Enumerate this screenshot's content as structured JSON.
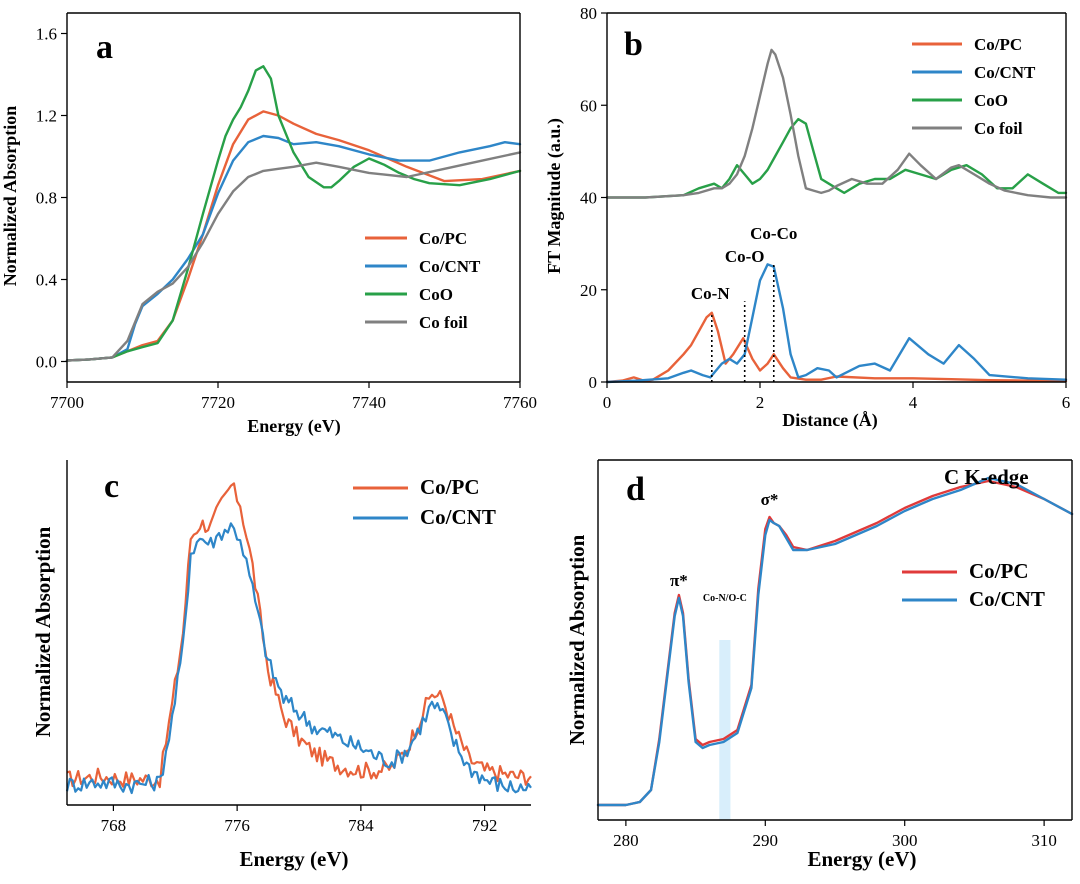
{
  "colors": {
    "Co/PC": "#E8623A",
    "Co/CNT": "#2E86C8",
    "CoO": "#28A048",
    "Co foil": "#808080",
    "Co/PC_d": "#E03A3A",
    "shade": "#D8EEFB"
  },
  "chart_data": [
    {
      "id": "a",
      "type": "line",
      "letter": "a",
      "xlabel": "Energy (eV)",
      "ylabel": "Normalized Absorption",
      "xlim": [
        7700,
        7760
      ],
      "ylim": [
        -0.1,
        1.7
      ],
      "xticks": [
        7700,
        7720,
        7740,
        7760
      ],
      "yticks": [
        0.0,
        0.4,
        0.8,
        1.2,
        1.6
      ],
      "ytick_labels": [
        "0.0",
        "0.4",
        "0.8",
        "1.2",
        "1.6"
      ],
      "legend": [
        "Co/PC",
        "Co/CNT",
        "CoO",
        "Co foil"
      ],
      "series": [
        {
          "name": "Co/PC",
          "x": [
            7700,
            7703,
            7706,
            7708,
            7710,
            7712,
            7714,
            7716,
            7718,
            7720,
            7722,
            7724,
            7726,
            7728,
            7730,
            7733,
            7736,
            7740,
            7745,
            7750,
            7755,
            7760
          ],
          "y": [
            0.005,
            0.01,
            0.02,
            0.05,
            0.08,
            0.1,
            0.2,
            0.4,
            0.62,
            0.86,
            1.06,
            1.18,
            1.22,
            1.2,
            1.16,
            1.11,
            1.08,
            1.03,
            0.95,
            0.88,
            0.89,
            0.93
          ]
        },
        {
          "name": "Co/CNT",
          "x": [
            7700,
            7703,
            7706,
            7708,
            7709,
            7710,
            7711,
            7712,
            7714,
            7716,
            7718,
            7720,
            7722,
            7724,
            7726,
            7728,
            7730,
            7733,
            7736,
            7740,
            7744,
            7748,
            7752,
            7756,
            7758,
            7760
          ],
          "y": [
            0.005,
            0.01,
            0.02,
            0.06,
            0.18,
            0.27,
            0.3,
            0.33,
            0.4,
            0.5,
            0.62,
            0.82,
            0.98,
            1.07,
            1.1,
            1.09,
            1.06,
            1.07,
            1.05,
            1.01,
            0.98,
            0.98,
            1.02,
            1.05,
            1.07,
            1.06
          ]
        },
        {
          "name": "CoO",
          "x": [
            7700,
            7703,
            7706,
            7708,
            7710,
            7712,
            7714,
            7716,
            7718,
            7720,
            7721,
            7722,
            7723,
            7724,
            7725,
            7726,
            7727,
            7728,
            7730,
            7732,
            7734,
            7735,
            7736,
            7738,
            7740,
            7742,
            7744,
            7746,
            7748,
            7752,
            7756,
            7760
          ],
          "y": [
            0.005,
            0.01,
            0.02,
            0.05,
            0.07,
            0.09,
            0.2,
            0.45,
            0.72,
            0.98,
            1.1,
            1.18,
            1.24,
            1.32,
            1.42,
            1.44,
            1.38,
            1.2,
            1.02,
            0.9,
            0.85,
            0.85,
            0.88,
            0.95,
            0.99,
            0.96,
            0.92,
            0.89,
            0.87,
            0.86,
            0.89,
            0.93
          ]
        },
        {
          "name": "Co foil",
          "x": [
            7700,
            7703,
            7706,
            7708,
            7710,
            7712,
            7714,
            7716,
            7718,
            7720,
            7722,
            7724,
            7726,
            7728,
            7730,
            7733,
            7736,
            7740,
            7745,
            7750,
            7755,
            7760
          ],
          "y": [
            0.005,
            0.01,
            0.02,
            0.1,
            0.28,
            0.34,
            0.38,
            0.46,
            0.58,
            0.72,
            0.83,
            0.9,
            0.93,
            0.94,
            0.95,
            0.97,
            0.95,
            0.92,
            0.9,
            0.94,
            0.98,
            1.02
          ]
        }
      ]
    },
    {
      "id": "b",
      "type": "line",
      "letter": "b",
      "xlabel": "Distance (Å)",
      "ylabel": "FT Magnitude (a.u.)",
      "xlim": [
        0,
        6
      ],
      "ylim": [
        0,
        80
      ],
      "xticks": [
        0,
        2,
        4,
        6
      ],
      "yticks": [
        0,
        20,
        40,
        60,
        80
      ],
      "legend": [
        "Co/PC",
        "Co/CNT",
        "CoO",
        "Co foil"
      ],
      "annotations": [
        {
          "text": "Co-N",
          "x": 1.35,
          "y": 18
        },
        {
          "text": "Co-O",
          "x": 1.8,
          "y": 26
        },
        {
          "text": "Co-Co",
          "x": 2.18,
          "y": 31
        }
      ],
      "reference_lines_x": [
        1.37,
        1.8,
        2.18
      ],
      "series": [
        {
          "name": "Co/PC",
          "x": [
            0,
            0.2,
            0.35,
            0.5,
            0.6,
            0.8,
            1.0,
            1.1,
            1.2,
            1.3,
            1.37,
            1.45,
            1.55,
            1.65,
            1.78,
            1.9,
            2.0,
            2.1,
            2.18,
            2.3,
            2.4,
            2.6,
            2.8,
            3.0,
            3.5,
            4.0,
            4.5,
            5.0,
            5.5,
            6.0
          ],
          "y": [
            0,
            0.3,
            1,
            0.2,
            0.5,
            2.5,
            6,
            8,
            11,
            14,
            15,
            11,
            4,
            6,
            9.5,
            5,
            2.5,
            4,
            6,
            3,
            1,
            0.5,
            0.5,
            1.2,
            0.8,
            0.8,
            0.6,
            0.4,
            0.3,
            0.2
          ]
        },
        {
          "name": "Co/CNT",
          "x": [
            0,
            0.4,
            0.8,
            1.0,
            1.1,
            1.25,
            1.35,
            1.5,
            1.6,
            1.7,
            1.8,
            1.9,
            2.0,
            2.1,
            2.18,
            2.3,
            2.4,
            2.5,
            2.6,
            2.75,
            2.9,
            3.0,
            3.3,
            3.5,
            3.7,
            3.95,
            4.2,
            4.4,
            4.6,
            4.8,
            5.0,
            5.5,
            6.0
          ],
          "y": [
            0,
            0.3,
            0.8,
            2,
            2.5,
            1.5,
            1,
            4,
            5,
            4,
            6,
            14,
            22,
            25.5,
            25,
            16,
            6,
            1,
            1.5,
            3,
            2.5,
            1,
            3.5,
            4,
            2.5,
            9.5,
            6,
            4,
            8,
            5,
            1.5,
            0.8,
            0.5
          ]
        },
        {
          "name": "CoO",
          "x": [
            0,
            0.5,
            1.0,
            1.2,
            1.4,
            1.5,
            1.6,
            1.7,
            1.8,
            1.9,
            2.0,
            2.1,
            2.2,
            2.3,
            2.4,
            2.5,
            2.6,
            2.7,
            2.8,
            2.9,
            3.0,
            3.1,
            3.3,
            3.5,
            3.7,
            3.9,
            4.1,
            4.3,
            4.5,
            4.7,
            4.9,
            5.1,
            5.3,
            5.5,
            5.7,
            5.9,
            6.0
          ],
          "y": [
            40,
            40,
            40.5,
            42,
            43,
            42,
            44,
            47,
            45,
            43,
            44,
            46,
            49,
            52,
            55,
            57,
            56,
            50,
            44,
            43,
            42,
            41,
            43,
            44,
            44,
            46,
            45,
            44,
            46,
            47,
            45,
            42,
            42,
            45,
            43,
            41,
            41
          ]
        },
        {
          "name": "Co foil",
          "x": [
            0,
            0.5,
            1.0,
            1.2,
            1.4,
            1.5,
            1.6,
            1.7,
            1.8,
            1.9,
            2.0,
            2.1,
            2.15,
            2.2,
            2.3,
            2.4,
            2.5,
            2.6,
            2.7,
            2.8,
            2.9,
            3.0,
            3.2,
            3.4,
            3.6,
            3.8,
            3.95,
            4.1,
            4.3,
            4.5,
            4.6,
            4.8,
            5.0,
            5.2,
            5.5,
            5.8,
            6.0
          ],
          "y": [
            40,
            40,
            40.5,
            41,
            42,
            42,
            43,
            45,
            49,
            55,
            62,
            69,
            72,
            71,
            66,
            58,
            49,
            42,
            41.5,
            41,
            41.5,
            42.5,
            44,
            43,
            43,
            46,
            49.5,
            47,
            44,
            46.5,
            47,
            45,
            43,
            41.5,
            40.5,
            40,
            40
          ]
        }
      ]
    },
    {
      "id": "c",
      "type": "line",
      "letter": "c",
      "xlabel": "Energy (eV)",
      "ylabel": "Normalized Absorption",
      "xlim": [
        765,
        795
      ],
      "ylim": [
        -0.05,
        1.15
      ],
      "xticks": [
        768,
        776,
        784,
        792
      ],
      "yticks": [],
      "legend": [
        "Co/PC",
        "Co/CNT"
      ],
      "series": [
        {
          "name": "Co/PC",
          "x": [
            765,
            767,
            769,
            771,
            771.8,
            772.5,
            773,
            773.6,
            774.3,
            775,
            775.6,
            776.2,
            777,
            778,
            779,
            780,
            781,
            782,
            783,
            784,
            785,
            786,
            787,
            788,
            788.6,
            789.3,
            790,
            791,
            792,
            793,
            794,
            795
          ],
          "y": [
            0.04,
            0.05,
            0.04,
            0.04,
            0.3,
            0.55,
            0.88,
            0.93,
            0.92,
            1.0,
            1.06,
            1.0,
            0.78,
            0.42,
            0.26,
            0.18,
            0.13,
            0.1,
            0.08,
            0.07,
            0.07,
            0.08,
            0.15,
            0.27,
            0.34,
            0.32,
            0.22,
            0.11,
            0.07,
            0.06,
            0.05,
            0.05
          ]
        },
        {
          "name": "Co/CNT",
          "x": [
            765,
            767,
            769,
            771,
            771.8,
            772.5,
            773,
            773.6,
            774.3,
            775,
            775.6,
            776.2,
            777,
            778,
            779,
            780,
            781,
            782,
            783,
            784,
            785,
            786,
            787,
            788,
            788.6,
            789.3,
            790,
            791,
            792,
            793,
            794,
            795
          ],
          "y": [
            0.02,
            0.03,
            0.02,
            0.03,
            0.25,
            0.5,
            0.83,
            0.88,
            0.86,
            0.9,
            0.92,
            0.88,
            0.7,
            0.45,
            0.32,
            0.27,
            0.22,
            0.2,
            0.17,
            0.15,
            0.12,
            0.1,
            0.14,
            0.24,
            0.3,
            0.27,
            0.17,
            0.08,
            0.04,
            0.02,
            0.01,
            0.01
          ]
        }
      ]
    },
    {
      "id": "d",
      "type": "line",
      "letter": "d",
      "xlabel": "Energy (eV)",
      "ylabel": "Normalized Absorption",
      "xlim": [
        278,
        312
      ],
      "ylim": [
        -0.05,
        1.15
      ],
      "xticks": [
        280,
        290,
        300,
        310
      ],
      "yticks": [],
      "title_text": "C K-edge",
      "legend": [
        "Co/PC",
        "Co/CNT"
      ],
      "annotations": [
        {
          "text": "π*",
          "x": 283.8,
          "y": 0.73
        },
        {
          "text": "σ*",
          "x": 290.3,
          "y": 1.0
        },
        {
          "text": "Co-N/O-C",
          "x": 287.1,
          "y": 0.68
        }
      ],
      "shaded_band_x": [
        286.7,
        287.5
      ],
      "series": [
        {
          "name": "Co/PC",
          "x": [
            278,
            280,
            281,
            281.8,
            282.4,
            283,
            283.5,
            283.8,
            284.1,
            284.5,
            285,
            285.5,
            286,
            287,
            288,
            289,
            289.5,
            290,
            290.3,
            290.6,
            291,
            291.5,
            292,
            293,
            295,
            298,
            300,
            302,
            304,
            306,
            308,
            310,
            312
          ],
          "y": [
            0.0,
            0.0,
            0.01,
            0.05,
            0.22,
            0.45,
            0.64,
            0.7,
            0.64,
            0.42,
            0.22,
            0.2,
            0.21,
            0.22,
            0.25,
            0.4,
            0.72,
            0.92,
            0.96,
            0.94,
            0.93,
            0.9,
            0.86,
            0.85,
            0.88,
            0.94,
            0.99,
            1.03,
            1.06,
            1.08,
            1.06,
            1.02,
            0.97
          ]
        },
        {
          "name": "Co/CNT",
          "x": [
            278,
            280,
            281,
            281.8,
            282.4,
            283,
            283.5,
            283.8,
            284.1,
            284.5,
            285,
            285.5,
            286,
            287,
            288,
            289,
            289.5,
            290,
            290.3,
            290.6,
            291,
            291.5,
            292,
            293,
            295,
            298,
            300,
            302,
            304,
            306,
            308,
            310,
            312
          ],
          "y": [
            0.0,
            0.0,
            0.01,
            0.05,
            0.21,
            0.44,
            0.63,
            0.69,
            0.63,
            0.41,
            0.21,
            0.19,
            0.2,
            0.21,
            0.24,
            0.39,
            0.7,
            0.9,
            0.95,
            0.94,
            0.93,
            0.89,
            0.85,
            0.85,
            0.87,
            0.93,
            0.98,
            1.02,
            1.05,
            1.09,
            1.07,
            1.02,
            0.97
          ]
        }
      ]
    }
  ]
}
